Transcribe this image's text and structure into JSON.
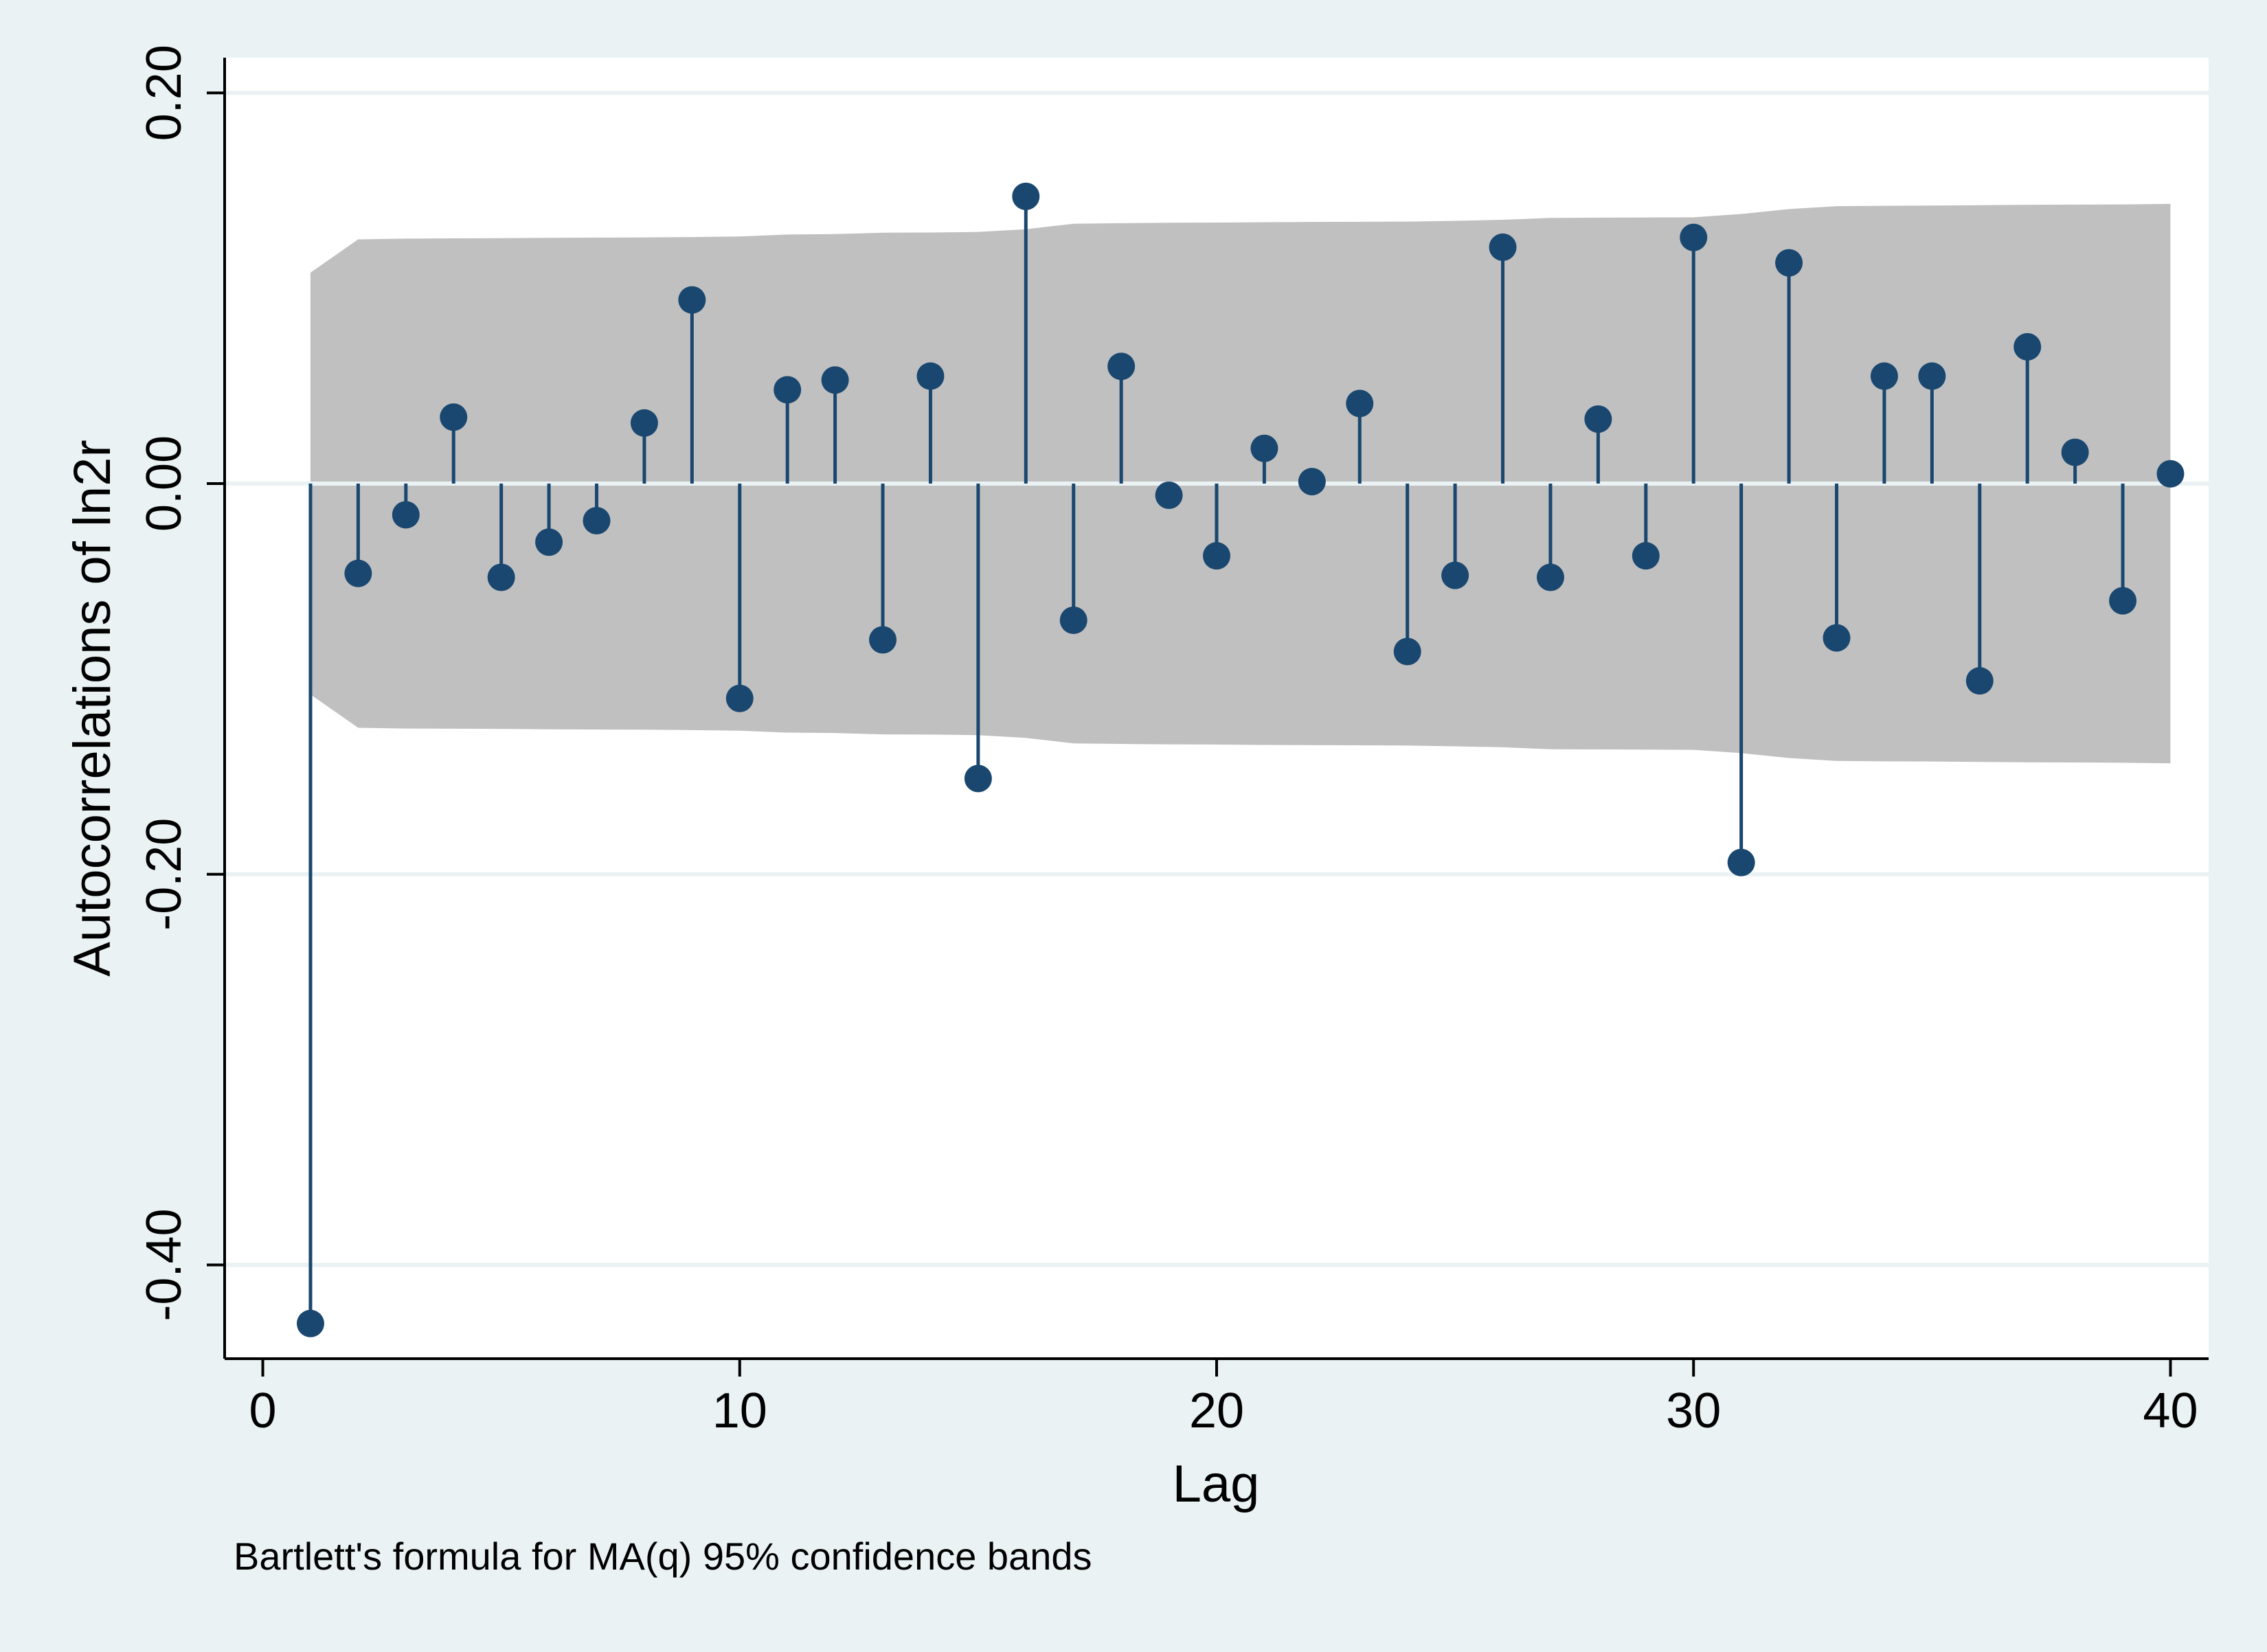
{
  "chart_data": {
    "type": "stem",
    "title": "",
    "xlabel": "Lag",
    "ylabel": "Autocorrelations of ln2r",
    "note": "Bartlett's formula for MA(q) 95% confidence bands",
    "xlim": [
      -0.8,
      40.8
    ],
    "ylim": [
      -0.448,
      0.218
    ],
    "x_ticks": [
      {
        "value": 0,
        "label": "0"
      },
      {
        "value": 10,
        "label": "10"
      },
      {
        "value": 20,
        "label": "20"
      },
      {
        "value": 30,
        "label": "30"
      },
      {
        "value": 40,
        "label": "40"
      }
    ],
    "y_ticks": [
      {
        "value": 0.2,
        "label": "0.20"
      },
      {
        "value": 0.0,
        "label": "0.00"
      },
      {
        "value": -0.2,
        "label": "-0.20"
      },
      {
        "value": -0.4,
        "label": "-0.40"
      }
    ],
    "grid": true,
    "lags": [
      1,
      2,
      3,
      4,
      5,
      6,
      7,
      8,
      9,
      10,
      11,
      12,
      13,
      14,
      15,
      16,
      17,
      18,
      19,
      20,
      21,
      22,
      23,
      24,
      25,
      26,
      27,
      28,
      29,
      30,
      31,
      32,
      33,
      34,
      35,
      36,
      37,
      38,
      39,
      40
    ],
    "values": [
      -0.43,
      -0.046,
      -0.016,
      0.034,
      -0.048,
      -0.03,
      -0.019,
      0.031,
      0.094,
      -0.11,
      0.048,
      0.053,
      -0.08,
      0.055,
      -0.151,
      0.147,
      -0.07,
      0.06,
      -0.006,
      -0.037,
      0.018,
      0.001,
      0.041,
      -0.086,
      -0.047,
      0.121,
      -0.048,
      0.033,
      -0.037,
      0.126,
      -0.194,
      0.113,
      -0.079,
      0.055,
      0.055,
      -0.101,
      0.07,
      0.016,
      -0.06,
      0.005
    ],
    "band_x": [
      1,
      2,
      3,
      4,
      5,
      6,
      7,
      8,
      9,
      10,
      11,
      12,
      13,
      14,
      15,
      16,
      17,
      18,
      19,
      20,
      21,
      22,
      23,
      24,
      25,
      26,
      27,
      28,
      29,
      30,
      31,
      32,
      33,
      34,
      35,
      36,
      37,
      38,
      39,
      40
    ],
    "band_upper": [
      0.108,
      0.125,
      0.1254,
      0.1255,
      0.1256,
      0.1258,
      0.1259,
      0.126,
      0.1262,
      0.1265,
      0.1275,
      0.1277,
      0.1284,
      0.1285,
      0.1288,
      0.1302,
      0.133,
      0.1333,
      0.1335,
      0.1336,
      0.1338,
      0.1339,
      0.134,
      0.1341,
      0.1345,
      0.135,
      0.136,
      0.1361,
      0.1362,
      0.1363,
      0.138,
      0.1405,
      0.142,
      0.1422,
      0.1423,
      0.1425,
      0.1427,
      0.1428,
      0.1429,
      0.1432
    ],
    "colors": {
      "marker": "#1a476f",
      "band": "#c0c0c0",
      "plot_background": "#ffffff",
      "page_background": "#eaf2f3",
      "gridline": "#eaf2f3"
    }
  }
}
